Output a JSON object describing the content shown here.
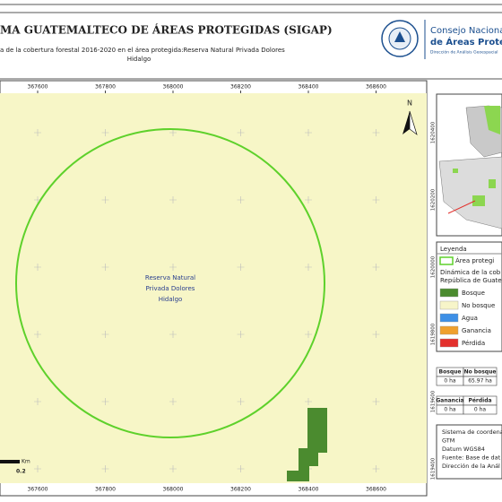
{
  "header": {
    "title": "MA GUATEMALTECO DE ÁREAS PROTEGIDAS  (SIGAP)",
    "subtitle_lines": [
      "a de la cobertura forestal 2016-2020 en el área protegida:Reserva Natural Privada Dolores",
      "Hidalgo"
    ]
  },
  "logo": {
    "line1": "Consejo Nacional",
    "line2": "de Áreas Protegidas",
    "line3": "Dirección de Análisis Geoespacial"
  },
  "map": {
    "x_coords": [
      367600,
      367800,
      368000,
      368200,
      368400,
      368600
    ],
    "y_coords": [
      1620400,
      1620200,
      1620000,
      1619800,
      1619600,
      1619400
    ],
    "area_label": [
      "Reserva Natural",
      "Privada Dolores",
      "Hidalgo"
    ],
    "north": "N",
    "scale": {
      "unit": "Km",
      "value": "0.2"
    }
  },
  "legend": {
    "title": "Leyenda",
    "area": "Área protegi",
    "heading": [
      "Dinámica de la cob",
      "República de Guate"
    ],
    "items": [
      {
        "label": "Bosque",
        "color": "#4b8b2f"
      },
      {
        "label": "No bosque",
        "color": "#f7f5c9"
      },
      {
        "label": "Agua",
        "color": "#3d8fe6"
      },
      {
        "label": "Ganancia",
        "color": "#efa02e"
      },
      {
        "label": "Pérdida",
        "color": "#e3302c"
      }
    ]
  },
  "table1": {
    "headers": [
      "Bosque",
      "No bosque"
    ],
    "values": [
      "0 ha",
      "65.97 ha"
    ]
  },
  "table2": {
    "headers": [
      "Ganancia",
      "Pérdida"
    ],
    "values": [
      "0 ha",
      "0 ha"
    ]
  },
  "info": [
    "Sistema de coordena",
    "GTM",
    "Datum WGS84",
    "Fuente: Base de dat",
    "Dirección de la Anál"
  ]
}
